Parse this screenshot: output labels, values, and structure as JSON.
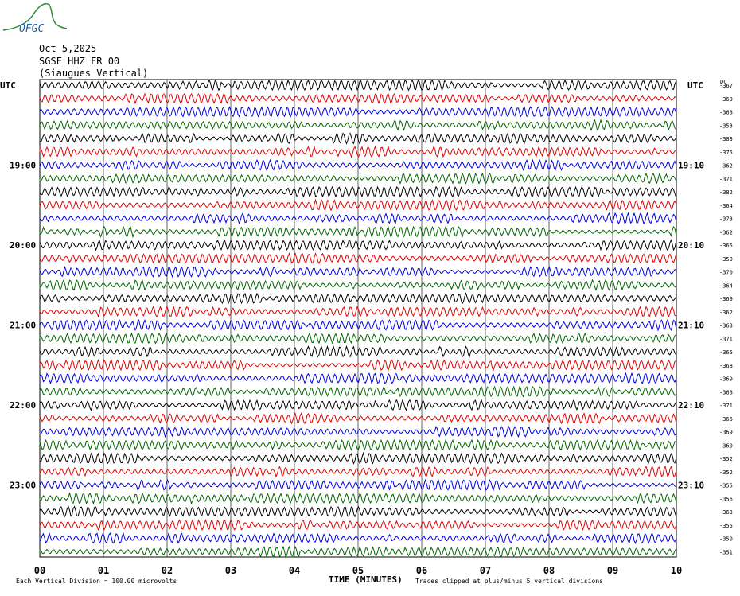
{
  "logo": {
    "text": "OFGC",
    "color": "#2e8b3a",
    "text_color": "#1f5fb0"
  },
  "header": {
    "date": "Oct 5,2025",
    "station": "SGSF HHZ FR 00",
    "location": "(Siaugues Vertical)"
  },
  "chart_data": {
    "type": "line",
    "subtype": "helicorder",
    "left_unit_label": "UTC",
    "right_unit_label": "UTC",
    "dc_label": "DC",
    "x_axis_title": "TIME (MINUTES)",
    "x_ticks": [
      "00",
      "01",
      "02",
      "03",
      "04",
      "05",
      "06",
      "07",
      "08",
      "09",
      "10"
    ],
    "xlim": [
      0,
      10
    ],
    "grid": true,
    "trace_colors": [
      "#000000",
      "#e00000",
      "#0000e0",
      "#006400"
    ],
    "trace_count": 36,
    "left_time_labels": [
      {
        "row": 6,
        "label": "19:00"
      },
      {
        "row": 12,
        "label": "20:00"
      },
      {
        "row": 18,
        "label": "21:00"
      },
      {
        "row": 24,
        "label": "22:00"
      },
      {
        "row": 30,
        "label": "23:00"
      }
    ],
    "right_time_labels": [
      {
        "row": 6,
        "label": "19:10"
      },
      {
        "row": 12,
        "label": "20:10"
      },
      {
        "row": 18,
        "label": "21:10"
      },
      {
        "row": 24,
        "label": "22:10"
      },
      {
        "row": 30,
        "label": "23:10"
      }
    ],
    "dc_offsets": [
      "-367",
      "-369",
      "-368",
      "-353",
      "-383",
      "-375",
      "-362",
      "-371",
      "-382",
      "-364",
      "-373",
      "-362",
      "-365",
      "-359",
      "-370",
      "-364",
      "-369",
      "-362",
      "-363",
      "-371",
      "-365",
      "-368",
      "-369",
      "-368",
      "-371",
      "-366",
      "-369",
      "-360",
      "-352",
      "-352",
      "-355",
      "-356",
      "-363",
      "-355",
      "-350",
      "-351"
    ],
    "footer_left": "Each Vertical Division =  100.00 microvolts",
    "footer_right": "Traces clipped at plus/minus 5 vertical divisions"
  }
}
